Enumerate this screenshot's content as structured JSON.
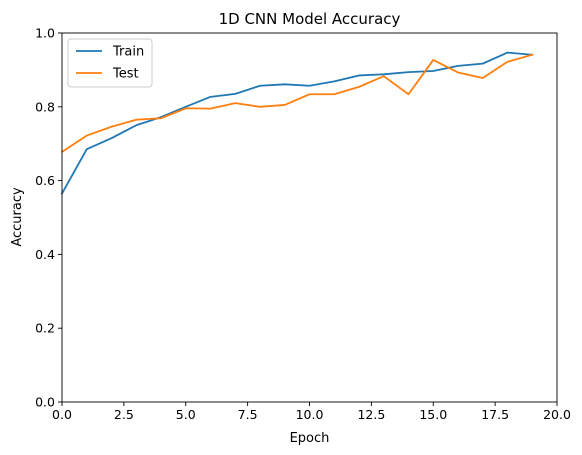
{
  "chart_data": {
    "type": "line",
    "title": "1D CNN Model Accuracy",
    "xlabel": "Epoch",
    "ylabel": "Accuracy",
    "xlim": [
      0,
      20
    ],
    "ylim": [
      0,
      1
    ],
    "xticks": [
      "0.0",
      "2.5",
      "5.0",
      "7.5",
      "10.0",
      "12.5",
      "15.0",
      "17.5",
      "20.0"
    ],
    "yticks": [
      "0.0",
      "0.2",
      "0.4",
      "0.6",
      "0.8",
      "1.0"
    ],
    "grid": false,
    "legend_position": "top-left",
    "x": [
      0,
      1,
      2,
      3,
      4,
      5,
      6,
      7,
      8,
      9,
      10,
      11,
      12,
      13,
      14,
      15,
      16,
      17,
      18,
      19
    ],
    "series": [
      {
        "name": "Train",
        "color": "#1f77b4",
        "values": [
          0.565,
          0.685,
          0.715,
          0.75,
          0.772,
          0.8,
          0.827,
          0.835,
          0.857,
          0.861,
          0.857,
          0.869,
          0.885,
          0.888,
          0.894,
          0.897,
          0.911,
          0.917,
          0.947,
          0.941
        ]
      },
      {
        "name": "Test",
        "color": "#ff7f0e",
        "values": [
          0.678,
          0.722,
          0.746,
          0.765,
          0.769,
          0.796,
          0.795,
          0.81,
          0.8,
          0.805,
          0.834,
          0.834,
          0.854,
          0.883,
          0.834,
          0.927,
          0.893,
          0.878,
          0.922,
          0.941
        ]
      }
    ]
  }
}
